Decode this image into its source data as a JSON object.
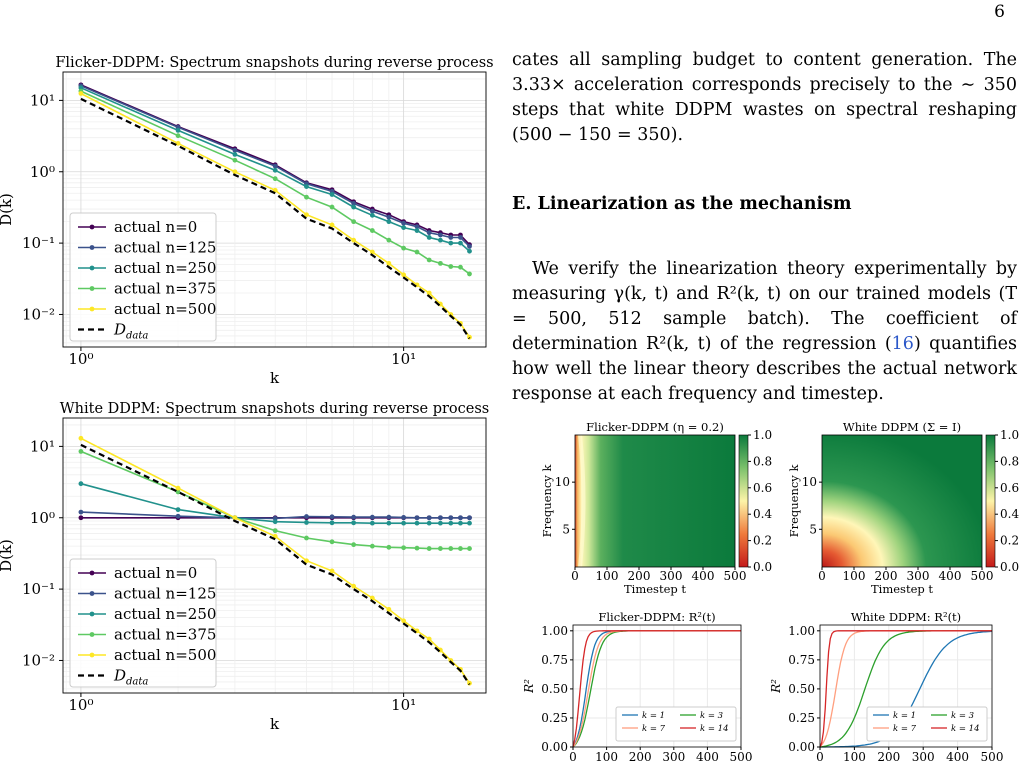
{
  "page_number": "6",
  "text": {
    "p1": "cates all sampling budget to content generation. The 3.33× acceleration corresponds precisely to the ∼ 350 steps that white DDPM wastes on spectral reshaping (500 − 150 = 350).",
    "section": "E.   Linearization as the mechanism",
    "p2a": "We verify the linearization theory experimentally by measuring γ(k, t) and R²(k, t) on our trained models (T = 500, 512 sample batch). The coefficient of determination R²(k, t) of the regression (",
    "p2ref": "16",
    "p2b": ") quantifies how well the linear theory describes the actual network response at each frequency and timestep."
  },
  "colors": {
    "n0": "#440154",
    "n125": "#3b528b",
    "n250": "#21918c",
    "n375": "#5ec962",
    "n500": "#fde725",
    "data": "#000000",
    "link": "#2b57c9"
  },
  "chart_data": [
    {
      "type": "line",
      "title": "Flicker-DDPM: Spectrum snapshots during reverse process",
      "xlabel": "k",
      "ylabel": "D(k)",
      "xscale": "log",
      "yscale": "log",
      "xticks": [
        "10⁰",
        "10¹"
      ],
      "yticks": [
        "10¹",
        "10⁰",
        "10⁻¹",
        "10⁻²"
      ],
      "xlim": [
        0.88,
        18
      ],
      "ylim": [
        0.0035,
        25
      ],
      "grid": true,
      "legend": "lower-left",
      "x": [
        1,
        2,
        3,
        4,
        5,
        6,
        7,
        8,
        9,
        10,
        11,
        12,
        13,
        14,
        15,
        16
      ],
      "series": [
        {
          "name": "actual n=0",
          "color": "#440154",
          "values": [
            16.5,
            4.3,
            2.1,
            1.25,
            0.7,
            0.56,
            0.38,
            0.3,
            0.25,
            0.2,
            0.18,
            0.15,
            0.14,
            0.13,
            0.13,
            0.095
          ]
        },
        {
          "name": "actual n=125",
          "color": "#3b528b",
          "values": [
            16,
            4.2,
            2.0,
            1.2,
            0.68,
            0.53,
            0.36,
            0.28,
            0.23,
            0.19,
            0.17,
            0.14,
            0.13,
            0.12,
            0.12,
            0.09
          ]
        },
        {
          "name": "actual n=250",
          "color": "#21918c",
          "values": [
            15,
            3.8,
            1.75,
            1.05,
            0.62,
            0.48,
            0.32,
            0.245,
            0.2,
            0.165,
            0.15,
            0.12,
            0.11,
            0.1,
            0.1,
            0.077
          ]
        },
        {
          "name": "actual n=375",
          "color": "#5ec962",
          "values": [
            13.5,
            3.2,
            1.45,
            0.8,
            0.44,
            0.32,
            0.2,
            0.15,
            0.11,
            0.085,
            0.075,
            0.058,
            0.052,
            0.047,
            0.046,
            0.037
          ]
        },
        {
          "name": "actual n=500",
          "color": "#fde725",
          "values": [
            12.5,
            2.5,
            1.0,
            0.55,
            0.25,
            0.18,
            0.11,
            0.075,
            0.052,
            0.036,
            0.026,
            0.02,
            0.014,
            0.01,
            0.0075,
            0.0048
          ]
        },
        {
          "name": "D_data",
          "color": "#000000",
          "dashed": true,
          "values": [
            10.5,
            2.3,
            0.9,
            0.5,
            0.22,
            0.16,
            0.1,
            0.068,
            0.046,
            0.033,
            0.024,
            0.018,
            0.013,
            0.0095,
            0.0072,
            0.0046
          ]
        }
      ]
    },
    {
      "type": "line",
      "title": "White DDPM: Spectrum snapshots during reverse process",
      "xlabel": "k",
      "ylabel": "D(k)",
      "xscale": "log",
      "yscale": "log",
      "xticks": [
        "10⁰",
        "10¹"
      ],
      "yticks": [
        "10¹",
        "10⁰",
        "10⁻¹",
        "10⁻²"
      ],
      "xlim": [
        0.88,
        18
      ],
      "ylim": [
        0.0035,
        25
      ],
      "grid": true,
      "legend": "lower-left",
      "x": [
        1,
        2,
        3,
        4,
        5,
        6,
        7,
        8,
        9,
        10,
        11,
        12,
        13,
        14,
        15,
        16
      ],
      "series": [
        {
          "name": "actual n=0",
          "color": "#440154",
          "values": [
            1.0,
            1.0,
            1.0,
            1.0,
            1.0,
            1.0,
            1.0,
            1.0,
            1.0,
            1.0,
            1.0,
            1.0,
            1.0,
            1.0,
            1.0,
            1.0
          ]
        },
        {
          "name": "actual n=125",
          "color": "#3b528b",
          "values": [
            1.2,
            1.05,
            1.0,
            0.98,
            1.04,
            1.03,
            1.02,
            1.02,
            1.02,
            1.01,
            1.0,
            1.0,
            1.0,
            1.0,
            1.0,
            1.0
          ]
        },
        {
          "name": "actual n=250",
          "color": "#21918c",
          "values": [
            3.0,
            1.3,
            1.0,
            0.88,
            0.86,
            0.85,
            0.85,
            0.84,
            0.84,
            0.84,
            0.84,
            0.84,
            0.84,
            0.84,
            0.84,
            0.84
          ]
        },
        {
          "name": "actual n=375",
          "color": "#5ec962",
          "values": [
            8.5,
            2.3,
            1.0,
            0.66,
            0.52,
            0.46,
            0.42,
            0.4,
            0.385,
            0.38,
            0.375,
            0.37,
            0.37,
            0.37,
            0.37,
            0.37
          ]
        },
        {
          "name": "actual n=500",
          "color": "#fde725",
          "values": [
            13,
            2.6,
            1.0,
            0.55,
            0.25,
            0.18,
            0.11,
            0.075,
            0.052,
            0.036,
            0.026,
            0.02,
            0.014,
            0.01,
            0.0075,
            0.0048
          ]
        },
        {
          "name": "D_data",
          "color": "#000000",
          "dashed": true,
          "values": [
            10.5,
            2.3,
            0.9,
            0.5,
            0.22,
            0.16,
            0.1,
            0.068,
            0.046,
            0.033,
            0.024,
            0.018,
            0.013,
            0.0095,
            0.0072,
            0.0046
          ]
        }
      ]
    },
    {
      "type": "heatmap",
      "title": "Flicker-DDPM (η = 0.2)",
      "xlabel": "Timestep t",
      "ylabel": "Frequency k",
      "xticks": [
        "0",
        "100",
        "200",
        "300",
        "400",
        "500"
      ],
      "yticks": [
        "5",
        "10"
      ],
      "xlim": [
        0,
        500
      ],
      "ylim": [
        1,
        15
      ],
      "colorbar": {
        "ticks": [
          "0.0",
          "0.2",
          "0.4",
          "0.6",
          "0.8",
          "1.0"
        ],
        "range": [
          0,
          1
        ],
        "colormap": "red-yellow-green"
      }
    },
    {
      "type": "heatmap",
      "title": "White DDPM (Σ = I)",
      "xlabel": "Timestep t",
      "ylabel": "Frequency k",
      "xticks": [
        "0",
        "100",
        "200",
        "300",
        "400",
        "500"
      ],
      "yticks": [
        "5",
        "10"
      ],
      "xlim": [
        0,
        500
      ],
      "ylim": [
        1,
        15
      ],
      "colorbar": {
        "ticks": [
          "0.0",
          "0.2",
          "0.4",
          "0.6",
          "0.8",
          "1.0"
        ],
        "range": [
          0,
          1
        ],
        "colormap": "red-yellow-green"
      }
    },
    {
      "type": "line",
      "title": "Flicker-DDPM: R²(t)",
      "ylabel": "R²",
      "xticks": [
        "0",
        "100",
        "200",
        "300",
        "400",
        "500"
      ],
      "yticks": [
        "0.00",
        "0.25",
        "0.50",
        "0.75",
        "1.00"
      ],
      "xlim": [
        0,
        500
      ],
      "ylim": [
        0,
        1.05
      ],
      "grid": true,
      "legend": "lower-right",
      "series": [
        {
          "name": "k = 1",
          "color": "#1f77b4",
          "t50": 38,
          "slope": 0.075
        },
        {
          "name": "k = 3",
          "color": "#2ca02c",
          "t50": 52,
          "slope": 0.06
        },
        {
          "name": "k = 7",
          "color": "#ff9f7f",
          "t50": 45,
          "slope": 0.065
        },
        {
          "name": "k = 14",
          "color": "#d62728",
          "t50": 20,
          "slope": 0.12
        }
      ]
    },
    {
      "type": "line",
      "title": "White DDPM: R²(t)",
      "ylabel": "R²",
      "xticks": [
        "0",
        "100",
        "200",
        "300",
        "400",
        "500"
      ],
      "yticks": [
        "0.00",
        "0.25",
        "0.50",
        "0.75",
        "1.00"
      ],
      "xlim": [
        0,
        500
      ],
      "ylim": [
        0,
        1.05
      ],
      "grid": true,
      "legend": "lower-right",
      "series": [
        {
          "name": "k = 1",
          "color": "#1f77b4",
          "t50": 290,
          "slope": 0.025
        },
        {
          "name": "k = 3",
          "color": "#2ca02c",
          "t50": 130,
          "slope": 0.035
        },
        {
          "name": "k = 7",
          "color": "#ff9f7f",
          "t50": 45,
          "slope": 0.07
        },
        {
          "name": "k = 14",
          "color": "#d62728",
          "t50": 18,
          "slope": 0.22
        }
      ]
    }
  ]
}
